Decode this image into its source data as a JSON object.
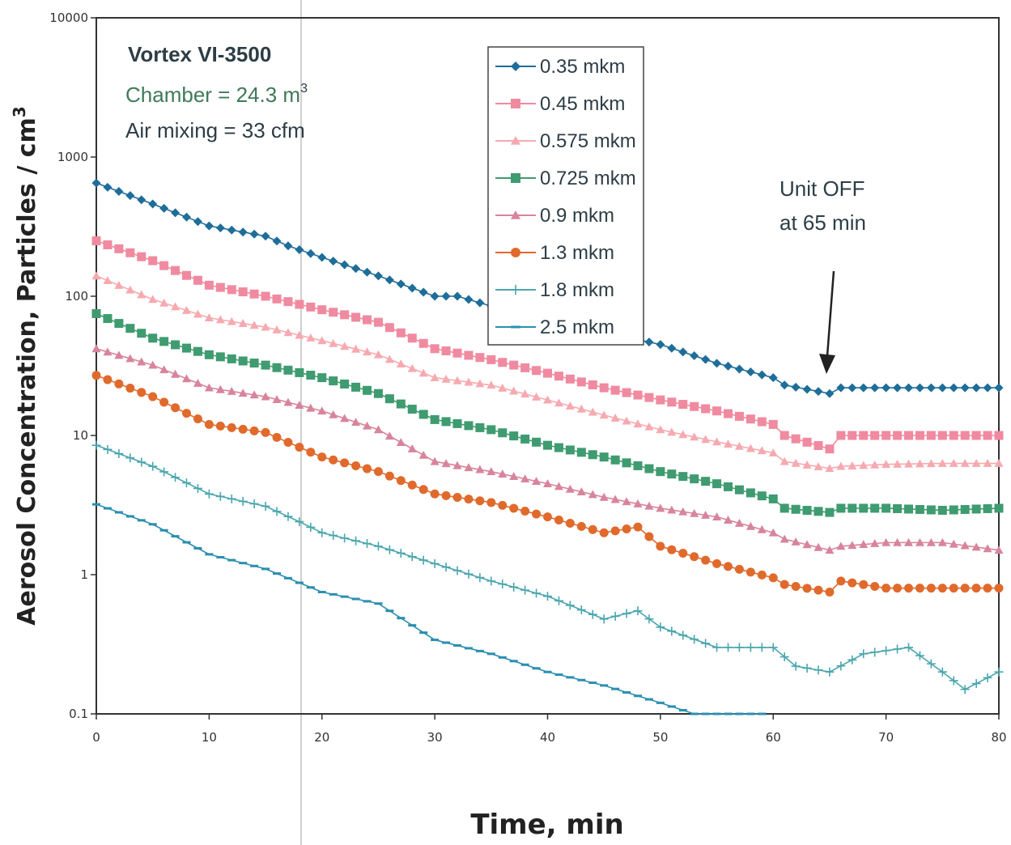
{
  "chart_data": {
    "type": "line",
    "title": "",
    "xlabel": "Time, min",
    "ylabel_main": "Aerosol Concentration, Particles / cm",
    "ylabel_sup": "3",
    "xlim": [
      0,
      80
    ],
    "ylim": [
      0.1,
      10000
    ],
    "yscale": "log",
    "x_ticks": [
      "0",
      "10",
      "20",
      "30",
      "40",
      "50",
      "60",
      "70",
      "80"
    ],
    "y_ticks": [
      "0.1",
      "1",
      "10",
      "100",
      "1000",
      "10000"
    ],
    "grid": false,
    "legend_position": "top-center",
    "annotations": {
      "device": "Vortex VI-3500",
      "chamber": "Chamber = 24.3 m",
      "chamber_sup": "3",
      "mixing": "Air mixing = 33 cfm",
      "unit_off_line1": "Unit OFF",
      "unit_off_line2": "at 65 min"
    },
    "series": [
      {
        "name": "0.35 mkm",
        "color": "#1f6d99",
        "marker": "diamond",
        "x": [
          0,
          5,
          10,
          15,
          17,
          20,
          25,
          30,
          32,
          35,
          40,
          45,
          50,
          55,
          60,
          61,
          65,
          66,
          70,
          75,
          80
        ],
        "y": [
          650,
          460,
          320,
          270,
          230,
          190,
          140,
          100,
          100,
          85,
          68,
          55,
          45,
          33,
          26,
          23,
          20,
          22,
          22,
          22,
          22
        ]
      },
      {
        "name": "0.45 mkm",
        "color": "#f08aa0",
        "marker": "square",
        "x": [
          0,
          5,
          10,
          15,
          20,
          25,
          30,
          35,
          40,
          45,
          50,
          55,
          60,
          61,
          65,
          66,
          70,
          75,
          80
        ],
        "y": [
          250,
          180,
          120,
          100,
          80,
          65,
          42,
          35,
          28,
          22,
          18,
          15,
          12,
          10,
          8,
          10,
          10,
          10,
          10
        ]
      },
      {
        "name": "0.575 mkm",
        "color": "#f6aab0",
        "marker": "triangle",
        "x": [
          0,
          5,
          10,
          15,
          20,
          25,
          30,
          35,
          40,
          45,
          50,
          55,
          60,
          61,
          65,
          66,
          70,
          75,
          80
        ],
        "y": [
          140,
          95,
          70,
          60,
          48,
          38,
          26,
          23,
          18,
          14,
          11,
          9,
          7.5,
          6.5,
          5.8,
          6,
          6.2,
          6.3,
          6.3
        ]
      },
      {
        "name": "0.725 mkm",
        "color": "#3f9b70",
        "marker": "square",
        "x": [
          0,
          5,
          10,
          15,
          20,
          25,
          30,
          35,
          40,
          45,
          50,
          55,
          60,
          61,
          65,
          66,
          70,
          75,
          80
        ],
        "y": [
          75,
          50,
          38,
          32,
          26,
          20,
          13,
          11,
          8.5,
          7,
          5.5,
          4.5,
          3.5,
          3,
          2.8,
          3,
          3,
          2.9,
          3
        ]
      },
      {
        "name": "0.9 mkm",
        "color": "#d8849c",
        "marker": "triangle",
        "x": [
          0,
          5,
          10,
          15,
          20,
          25,
          30,
          35,
          40,
          45,
          50,
          55,
          60,
          61,
          65,
          66,
          70,
          75,
          80
        ],
        "y": [
          42,
          32,
          22,
          19,
          15,
          11,
          6.5,
          5.5,
          4.5,
          3.6,
          3,
          2.6,
          2,
          1.8,
          1.5,
          1.6,
          1.7,
          1.7,
          1.5
        ]
      },
      {
        "name": "1.3 mkm",
        "color": "#e06a2c",
        "marker": "circle",
        "x": [
          0,
          5,
          10,
          15,
          20,
          25,
          30,
          35,
          40,
          45,
          48,
          50,
          55,
          60,
          61,
          65,
          66,
          70,
          75,
          80
        ],
        "y": [
          27,
          19,
          12,
          10.5,
          7,
          5.5,
          3.8,
          3.3,
          2.6,
          2,
          2.2,
          1.6,
          1.2,
          0.95,
          0.85,
          0.75,
          0.9,
          0.8,
          0.8,
          0.8
        ]
      },
      {
        "name": "1.8 mkm",
        "color": "#4aa6ad",
        "marker": "plus",
        "x": [
          0,
          5,
          7,
          10,
          15,
          18,
          20,
          25,
          30,
          35,
          40,
          45,
          48,
          50,
          55,
          60,
          62,
          65,
          68,
          72,
          75,
          77,
          80
        ],
        "y": [
          8.5,
          6,
          5,
          3.8,
          3.1,
          2.4,
          2,
          1.6,
          1.2,
          0.9,
          0.7,
          0.48,
          0.55,
          0.42,
          0.3,
          0.3,
          0.22,
          0.2,
          0.27,
          0.3,
          0.2,
          0.15,
          0.2
        ]
      },
      {
        "name": "2.5 mkm",
        "color": "#2b8fb0",
        "marker": "dash",
        "x": [
          0,
          5,
          10,
          15,
          20,
          25,
          30,
          35,
          40,
          45,
          50,
          53,
          55,
          59
        ],
        "y": [
          3.2,
          2.3,
          1.4,
          1.1,
          0.75,
          0.62,
          0.34,
          0.27,
          0.2,
          0.16,
          0.12,
          0.1,
          0.1,
          0.1
        ]
      }
    ]
  }
}
